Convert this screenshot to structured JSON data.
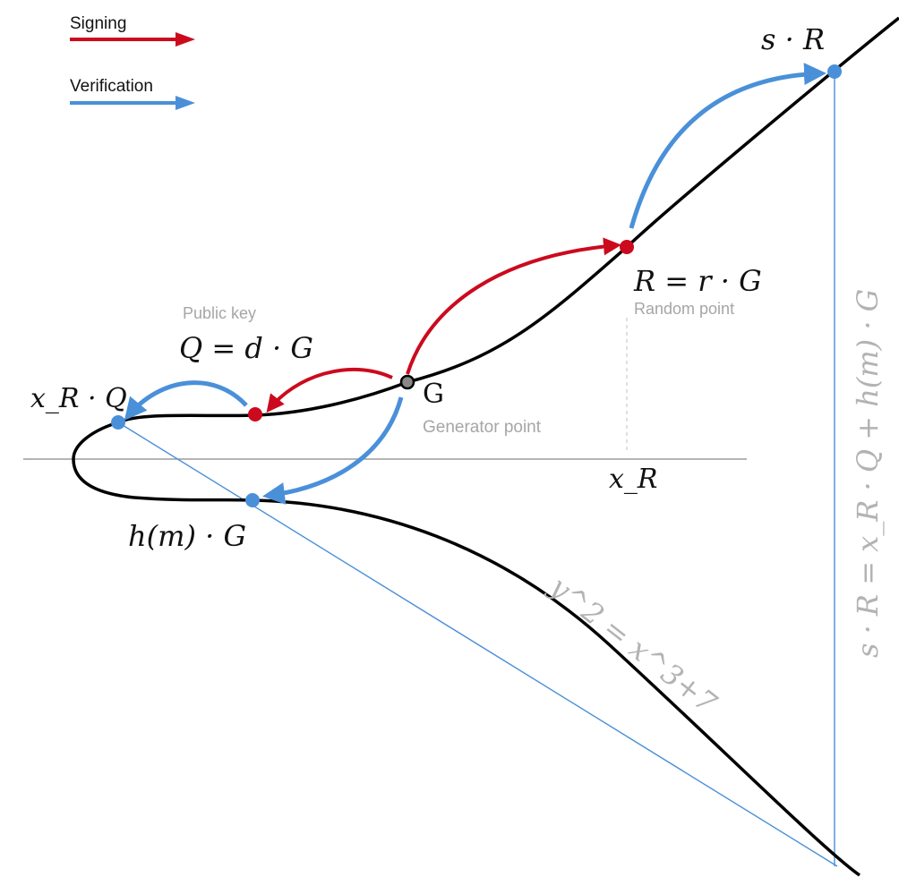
{
  "legend": {
    "signing_label": "Signing",
    "verification_label": "Verification"
  },
  "colors": {
    "signing": "#cc0a1e",
    "verification": "#4a90d9",
    "curve": "#000000",
    "axis": "#888888",
    "caption": "#a6a6a6",
    "generator_point": "#888888"
  },
  "points": {
    "generator": {
      "label": "G",
      "caption": "Generator point"
    },
    "public_key": {
      "label": "Q = d · G",
      "caption": "Public key"
    },
    "random": {
      "label": "R = r · G",
      "caption": "Random point"
    },
    "x_r_q": {
      "label": "x_R · Q"
    },
    "h_m_g": {
      "label": "h(m) · G"
    },
    "s_r": {
      "label": "s · R"
    }
  },
  "axis": {
    "x_r_label": "x_R"
  },
  "curve_equation": "y^2 = x^3+7",
  "verification_equation": "s · R = x_R · Q + h(m) · G"
}
